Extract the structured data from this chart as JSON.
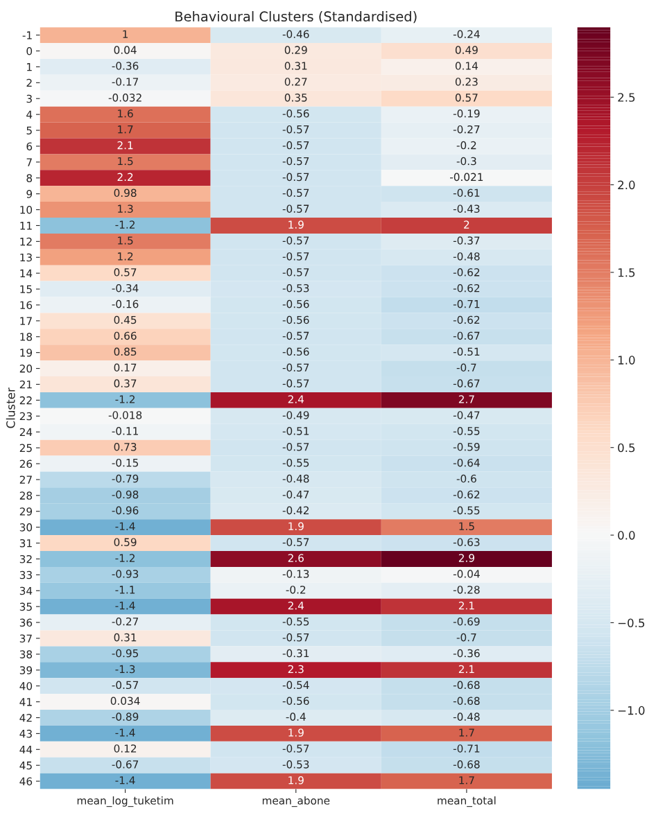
{
  "chart_data": {
    "type": "heatmap",
    "title": "Behavioural Clusters (Standardised)",
    "ylabel": "Cluster",
    "categories": [
      "mean_log_tuketim",
      "mean_abone",
      "mean_total"
    ],
    "y_categories": [
      "-1",
      "0",
      "1",
      "2",
      "3",
      "4",
      "5",
      "6",
      "7",
      "8",
      "9",
      "10",
      "11",
      "12",
      "13",
      "14",
      "15",
      "16",
      "17",
      "18",
      "19",
      "20",
      "21",
      "22",
      "23",
      "24",
      "25",
      "26",
      "27",
      "28",
      "29",
      "30",
      "31",
      "32",
      "33",
      "34",
      "35",
      "36",
      "37",
      "38",
      "39",
      "40",
      "41",
      "42",
      "43",
      "44",
      "45",
      "46"
    ],
    "cells": [
      [
        1,
        -0.46,
        -0.24
      ],
      [
        0.04,
        0.29,
        0.49
      ],
      [
        -0.36,
        0.31,
        0.14
      ],
      [
        -0.17,
        0.27,
        0.23
      ],
      [
        -0.032,
        0.35,
        0.57
      ],
      [
        1.6,
        -0.56,
        -0.19
      ],
      [
        1.7,
        -0.57,
        -0.27
      ],
      [
        2.1,
        -0.57,
        -0.2
      ],
      [
        1.5,
        -0.57,
        -0.3
      ],
      [
        2.2,
        -0.57,
        -0.021
      ],
      [
        0.98,
        -0.57,
        -0.61
      ],
      [
        1.3,
        -0.57,
        -0.43
      ],
      [
        -1.2,
        1.9,
        2
      ],
      [
        1.5,
        -0.57,
        -0.37
      ],
      [
        1.2,
        -0.57,
        -0.48
      ],
      [
        0.57,
        -0.57,
        -0.62
      ],
      [
        -0.34,
        -0.53,
        -0.62
      ],
      [
        -0.16,
        -0.56,
        -0.71
      ],
      [
        0.45,
        -0.56,
        -0.62
      ],
      [
        0.66,
        -0.57,
        -0.67
      ],
      [
        0.85,
        -0.56,
        -0.51
      ],
      [
        0.17,
        -0.57,
        -0.7
      ],
      [
        0.37,
        -0.57,
        -0.67
      ],
      [
        -1.2,
        2.4,
        2.7
      ],
      [
        -0.018,
        -0.49,
        -0.47
      ],
      [
        -0.11,
        -0.51,
        -0.55
      ],
      [
        0.73,
        -0.57,
        -0.59
      ],
      [
        -0.15,
        -0.55,
        -0.64
      ],
      [
        -0.79,
        -0.48,
        -0.6
      ],
      [
        -0.98,
        -0.47,
        -0.62
      ],
      [
        -0.96,
        -0.42,
        -0.55
      ],
      [
        -1.4,
        1.9,
        1.5
      ],
      [
        0.59,
        -0.57,
        -0.63
      ],
      [
        -1.2,
        2.6,
        2.9
      ],
      [
        -0.93,
        -0.13,
        -0.04
      ],
      [
        -1.1,
        -0.2,
        -0.28
      ],
      [
        -1.4,
        2.4,
        2.1
      ],
      [
        -0.27,
        -0.55,
        -0.69
      ],
      [
        0.31,
        -0.57,
        -0.7
      ],
      [
        -0.95,
        -0.31,
        -0.36
      ],
      [
        -1.3,
        2.3,
        2.1
      ],
      [
        -0.57,
        -0.54,
        -0.68
      ],
      [
        0.034,
        -0.56,
        -0.68
      ],
      [
        -0.89,
        -0.4,
        -0.48
      ],
      [
        -1.4,
        1.9,
        1.7
      ],
      [
        0.12,
        -0.57,
        -0.71
      ],
      [
        -0.67,
        -0.53,
        -0.68
      ],
      [
        -1.4,
        1.9,
        1.7
      ]
    ],
    "data_labels": true,
    "clim": [
      -1.45,
      2.9
    ],
    "cticks": [
      {
        "value": -1.0,
        "label": "−1.0"
      },
      {
        "value": -0.5,
        "label": "−0.5"
      },
      {
        "value": 0.0,
        "label": "0.0"
      },
      {
        "value": 0.5,
        "label": "0.5"
      },
      {
        "value": 1.0,
        "label": "1.0"
      },
      {
        "value": 1.5,
        "label": "1.5"
      },
      {
        "value": 2.0,
        "label": "2.0"
      },
      {
        "value": 2.5,
        "label": "2.5"
      }
    ]
  }
}
